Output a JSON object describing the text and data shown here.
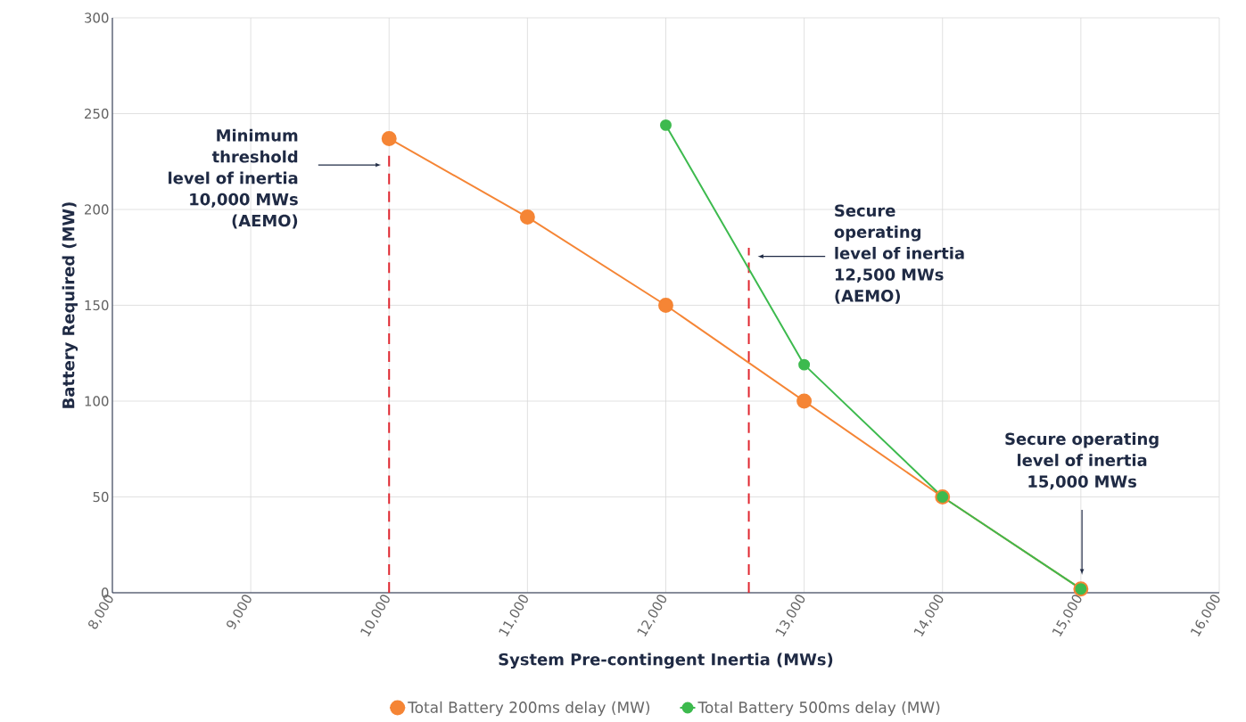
{
  "chart_data": {
    "type": "line",
    "xlabel": "System Pre-contingent Inertia (MWs)",
    "ylabel": "Battery Required (MW)",
    "xlim": [
      8000,
      16000
    ],
    "xticks": [
      {
        "value": 8000,
        "label": "8,000"
      },
      {
        "value": 9000,
        "label": "9,000"
      },
      {
        "value": 10000,
        "label": "10,000"
      },
      {
        "value": 11000,
        "label": "11,000"
      },
      {
        "value": 12000,
        "label": "12,000"
      },
      {
        "value": 13000,
        "label": "13,000"
      },
      {
        "value": 14000,
        "label": "14,000"
      },
      {
        "value": 15000,
        "label": "15,000"
      },
      {
        "value": 16000,
        "label": "16,000"
      }
    ],
    "ylim": [
      0,
      300
    ],
    "yticks": [
      0,
      50,
      100,
      150,
      200,
      250,
      300
    ],
    "grid": true,
    "legend": "bottom",
    "marker": "circle",
    "line_style": "solid",
    "series": [
      {
        "name": "Total Battery 200ms delay (MW)",
        "color": "#f58535",
        "x": [
          10000,
          11000,
          12000,
          13000,
          14000,
          15000
        ],
        "values": [
          237,
          196,
          150,
          100,
          50,
          2
        ]
      },
      {
        "name": "Total Battery 500ms delay (MW)",
        "color": "#3dba4e",
        "x": [
          12000,
          13000,
          14000,
          15000
        ],
        "values": [
          244,
          119,
          50,
          2
        ]
      }
    ],
    "ref_lines": [
      {
        "axis": "x",
        "value": 10000,
        "color": "#e0262f",
        "line_style": "dashed"
      },
      {
        "axis": "x",
        "value": 12600,
        "color": "#e0262f",
        "line_style": "dashed"
      }
    ],
    "annotations": [
      "Minimum threshold level of inertia 10,000 MWs (AEMO)",
      "Secure operating level of inertia 12,500 MWs (AEMO)",
      "Secure operating level of inertia 15,000 MWs"
    ]
  }
}
